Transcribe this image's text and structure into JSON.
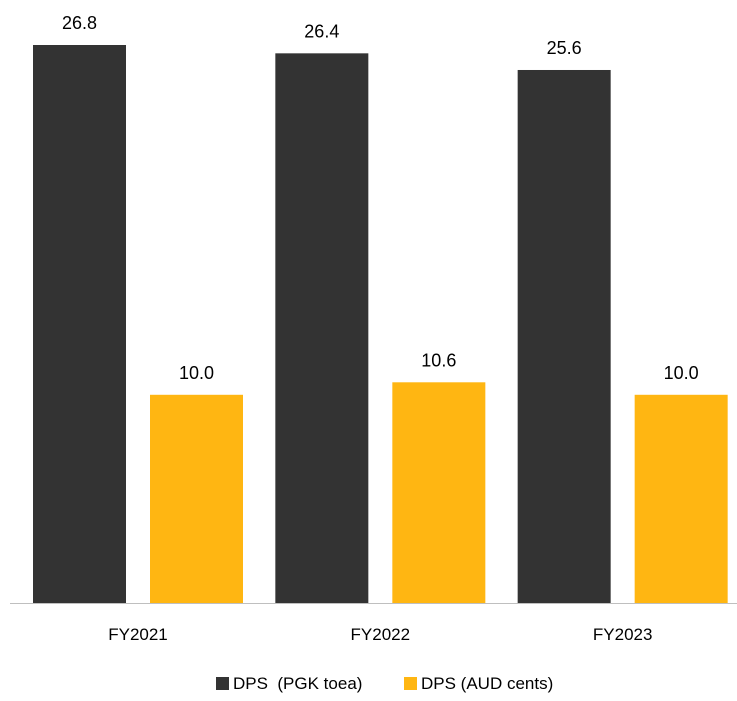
{
  "chart_data": {
    "type": "bar",
    "title": "",
    "xlabel": "",
    "ylabel": "",
    "categories": [
      "FY2021",
      "FY2022",
      "FY2023"
    ],
    "series": [
      {
        "name": "DPS  (PGK toea)",
        "values": [
          26.8,
          26.4,
          25.6
        ],
        "labels": [
          "26.8",
          "26.4",
          "25.6"
        ],
        "color": "#333333"
      },
      {
        "name": "DPS (AUD cents)",
        "values": [
          10.0,
          10.6,
          10.0
        ],
        "labels": [
          "10.0",
          "10.6",
          "10.0"
        ],
        "color": "#FFB612"
      }
    ],
    "ylim": [
      0,
      26.8
    ],
    "grid": false,
    "legend_position": "bottom-center",
    "data_labels": true
  }
}
